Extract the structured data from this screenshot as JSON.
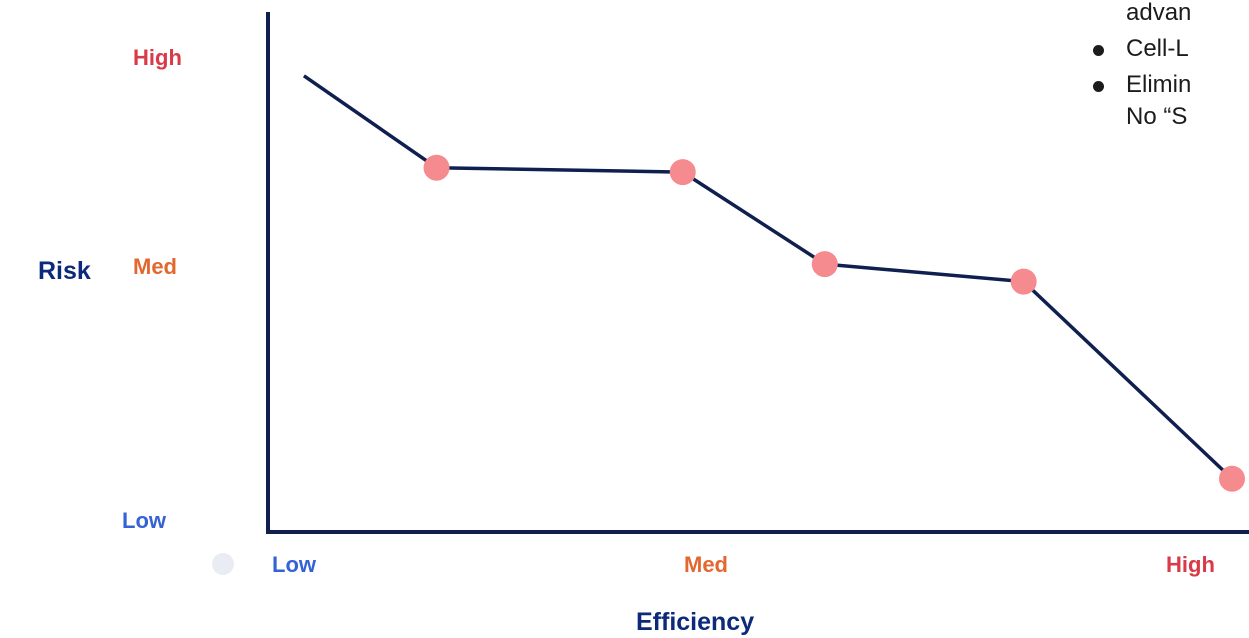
{
  "colors": {
    "line": "#0f1f4f",
    "axis": "#0f1f4f",
    "point": "#f58a8f",
    "high": "#d93a48",
    "med": "#e3682f",
    "low": "#3563d6",
    "axis_title": "#0d2a7a",
    "grey_dot": "#e9ecf3"
  },
  "chart_data": {
    "type": "line",
    "title": "",
    "xlabel": "Efficiency",
    "ylabel": "Risk",
    "x_ticks": [
      "Low",
      "Med",
      "High"
    ],
    "y_ticks": [
      "Low",
      "Med",
      "High"
    ],
    "xlim": [
      0,
      1
    ],
    "ylim": [
      0,
      1
    ],
    "grid": false,
    "series": [
      {
        "points": [
          {
            "x": 0.02,
            "y": 0.98,
            "marker": false
          },
          {
            "x": 0.16,
            "y": 0.77,
            "marker": true
          },
          {
            "x": 0.42,
            "y": 0.76,
            "marker": true
          },
          {
            "x": 0.57,
            "y": 0.55,
            "marker": true
          },
          {
            "x": 0.78,
            "y": 0.51,
            "marker": true
          },
          {
            "x": 1.0,
            "y": 0.06,
            "marker": true
          }
        ]
      }
    ]
  },
  "notes": {
    "items": [
      {
        "text": "advan",
        "bullet": false
      },
      {
        "text": "Cell-L",
        "bullet": true
      },
      {
        "text": "Elimin",
        "bullet": true
      },
      {
        "text": "No “S",
        "bullet": false
      }
    ]
  }
}
